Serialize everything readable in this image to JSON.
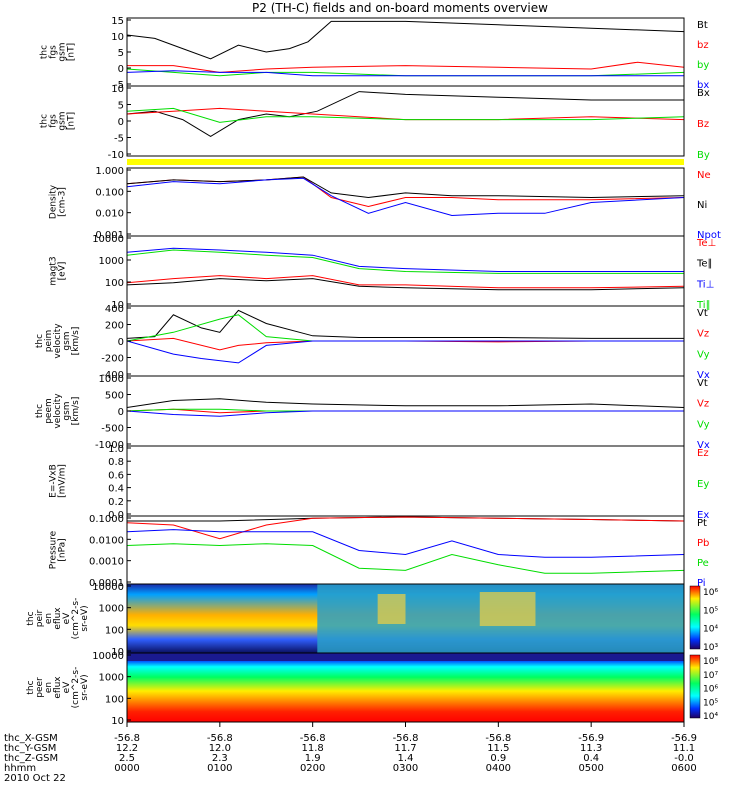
{
  "title": "P2 (TH-C) fields and on-board moments overview",
  "colors": {
    "black": "#000000",
    "red": "#ff0000",
    "green": "#00dd00",
    "blue": "#0000ff",
    "yellow": "#ffff00"
  },
  "time_axis": {
    "ticks": [
      "0000",
      "0100",
      "0200",
      "0300",
      "0400",
      "0500",
      "0600"
    ],
    "rows": [
      {
        "label": "thc_X-GSM",
        "values": [
          "-56.8",
          "-56.8",
          "-56.8",
          "-56.8",
          "-56.8",
          "-56.9",
          "-56.9"
        ]
      },
      {
        "label": "thc_Y-GSM",
        "values": [
          "12.2",
          "12.0",
          "11.8",
          "11.7",
          "11.5",
          "11.3",
          "11.1"
        ]
      },
      {
        "label": "thc_Z-GSM",
        "values": [
          "2.5",
          "2.3",
          "1.9",
          "1.4",
          "0.9",
          "0.4",
          "-0.0"
        ]
      },
      {
        "label": "hhmm",
        "values": [
          "0000",
          "0100",
          "0200",
          "0300",
          "0400",
          "0500",
          "0600"
        ]
      }
    ],
    "date": "2010 Oct 22"
  },
  "chart_data": [
    {
      "type": "line",
      "ylabel": [
        "thc",
        "fgs",
        "gsm",
        "[nT]"
      ],
      "ylim": [
        -5,
        15
      ],
      "yticks": [
        "15",
        "10",
        "5",
        "0",
        "-5"
      ],
      "legend": [
        {
          "name": "Bt",
          "color": "#000000"
        },
        {
          "name": "bz",
          "color": "#ff0000"
        },
        {
          "name": "by",
          "color": "#00dd00"
        },
        {
          "name": "bx",
          "color": "#0000ff"
        }
      ],
      "series": [
        {
          "name": "Bt",
          "hours": [
            0,
            0.3,
            0.6,
            0.9,
            1.2,
            1.5,
            1.75,
            1.95,
            2.2,
            3,
            4,
            5,
            6
          ],
          "values": [
            10,
            9,
            6,
            3,
            7,
            5,
            6,
            8,
            14,
            14,
            13,
            12,
            11
          ]
        },
        {
          "name": "bz",
          "hours": [
            0,
            0.5,
            1,
            1.5,
            2,
            3,
            4,
            5,
            5.5,
            6
          ],
          "values": [
            1,
            1,
            -1,
            0,
            0.5,
            1,
            0.5,
            0,
            2,
            0.5
          ]
        },
        {
          "name": "by",
          "hours": [
            0,
            0.5,
            1,
            1.5,
            2,
            3,
            4,
            5,
            6
          ],
          "values": [
            0,
            -1,
            -2,
            -1,
            -1,
            -2,
            -2,
            -2,
            -1
          ]
        },
        {
          "name": "bx",
          "hours": [
            0,
            0.5,
            1,
            1.5,
            2,
            3,
            4,
            5,
            6
          ],
          "values": [
            -1,
            -0.5,
            -1,
            -1,
            -2,
            -2,
            -2,
            -2,
            -2
          ]
        }
      ]
    },
    {
      "type": "line",
      "ylabel": [
        "thc",
        "fgs",
        "gsm",
        "[nT]"
      ],
      "ylim": [
        -15,
        10
      ],
      "yticks": [
        "10",
        "5",
        "0",
        "-5",
        "-10"
      ],
      "legend": [
        {
          "name": "Bx",
          "color": "#000000"
        },
        {
          "name": "Bz",
          "color": "#ff0000"
        },
        {
          "name": "By",
          "color": "#00dd00"
        }
      ],
      "series": [
        {
          "name": "Bx",
          "hours": [
            0,
            0.3,
            0.6,
            0.9,
            1.2,
            1.5,
            1.75,
            2.05,
            2.5,
            3,
            4,
            5,
            6
          ],
          "values": [
            0,
            1,
            -2,
            -8,
            -2,
            0,
            -1,
            1,
            8,
            7,
            6,
            5,
            5
          ]
        },
        {
          "name": "Bz",
          "hours": [
            0,
            0.5,
            1,
            1.5,
            2,
            3,
            4,
            5,
            6
          ],
          "values": [
            0,
            1,
            2,
            1,
            0,
            -2,
            -2,
            -1,
            -2
          ]
        },
        {
          "name": "By",
          "hours": [
            0,
            0.5,
            1,
            1.5,
            2,
            3,
            4,
            5,
            6
          ],
          "values": [
            1,
            2,
            -3,
            -1,
            -1,
            -2,
            -2,
            -2,
            -1
          ]
        }
      ]
    },
    {
      "type": "line",
      "scale": "log",
      "ylabel": [
        "Density",
        "[cm-3]"
      ],
      "ylim": [
        0.001,
        1.0
      ],
      "yticks": [
        "1.000",
        "0.100",
        "0.010",
        "0.001"
      ],
      "legend": [
        {
          "name": "Ne",
          "color": "#ff0000"
        },
        {
          "name": "Ni",
          "color": "#000000"
        },
        {
          "name": "Npot",
          "color": "#0000ff"
        }
      ],
      "series": [
        {
          "name": "Ne",
          "hours": [
            0,
            0.5,
            1,
            1.5,
            1.9,
            2.2,
            2.6,
            3,
            3.5,
            4,
            5,
            6
          ],
          "values": [
            0.2,
            0.3,
            0.25,
            0.3,
            0.4,
            0.05,
            0.02,
            0.05,
            0.05,
            0.04,
            0.04,
            0.05
          ]
        },
        {
          "name": "Ni",
          "hours": [
            0,
            0.5,
            1,
            1.5,
            1.9,
            2.2,
            2.6,
            3,
            3.5,
            4,
            5,
            6
          ],
          "values": [
            0.2,
            0.3,
            0.25,
            0.3,
            0.4,
            0.08,
            0.05,
            0.08,
            0.06,
            0.06,
            0.05,
            0.06
          ]
        },
        {
          "name": "Npot",
          "hours": [
            0,
            0.5,
            1,
            1.5,
            1.9,
            2.2,
            2.6,
            3,
            3.5,
            4,
            4.5,
            5,
            6
          ],
          "values": [
            0.15,
            0.25,
            0.2,
            0.3,
            0.35,
            0.06,
            0.01,
            0.03,
            0.008,
            0.01,
            0.01,
            0.03,
            0.05
          ]
        }
      ]
    },
    {
      "type": "line",
      "scale": "log",
      "ylabel": [
        "magt3",
        "[eV]"
      ],
      "ylim": [
        10,
        10000
      ],
      "yticks": [
        "10000",
        "1000",
        "100",
        "10"
      ],
      "legend": [
        {
          "name": "Te⊥",
          "color": "#ff0000"
        },
        {
          "name": "Te∥",
          "color": "#000000"
        },
        {
          "name": "Ti⊥",
          "color": "#0000ff"
        },
        {
          "name": "Ti∥",
          "color": "#00dd00"
        }
      ],
      "series": [
        {
          "name": "Te⊥",
          "hours": [
            0,
            0.5,
            1,
            1.5,
            2,
            2.5,
            3,
            4,
            5,
            6
          ],
          "values": [
            100,
            150,
            200,
            150,
            200,
            80,
            80,
            60,
            60,
            70
          ]
        },
        {
          "name": "Te∥",
          "hours": [
            0,
            0.5,
            1,
            1.5,
            2,
            2.5,
            3,
            4,
            5,
            6
          ],
          "values": [
            80,
            100,
            150,
            120,
            150,
            70,
            60,
            50,
            50,
            60
          ]
        },
        {
          "name": "Ti⊥",
          "hours": [
            0,
            0.5,
            1,
            1.5,
            2,
            2.5,
            3,
            4,
            5,
            6
          ],
          "values": [
            2000,
            3000,
            2500,
            2000,
            1500,
            500,
            400,
            300,
            300,
            300
          ]
        },
        {
          "name": "Ti∥",
          "hours": [
            0,
            0.5,
            1,
            1.5,
            2,
            2.5,
            3,
            4,
            5,
            6
          ],
          "values": [
            1500,
            2500,
            2000,
            1500,
            1200,
            400,
            300,
            250,
            250,
            250
          ]
        }
      ]
    },
    {
      "type": "line",
      "ylabel": [
        "thc",
        "peim",
        "velocity",
        "gsm",
        "[km/s]"
      ],
      "ylim": [
        -400,
        400
      ],
      "yticks": [
        "400",
        "200",
        "0",
        "-200",
        "-400"
      ],
      "legend": [
        {
          "name": "Vt",
          "color": "#000000"
        },
        {
          "name": "Vz",
          "color": "#ff0000"
        },
        {
          "name": "Vy",
          "color": "#00dd00"
        },
        {
          "name": "Vx",
          "color": "#0000ff"
        }
      ],
      "series": [
        {
          "name": "Vt",
          "hours": [
            0,
            0.3,
            0.5,
            0.8,
            1,
            1.2,
            1.5,
            2,
            2.5,
            3,
            4,
            5,
            6
          ],
          "values": [
            30,
            50,
            300,
            150,
            100,
            350,
            200,
            60,
            40,
            40,
            40,
            30,
            30
          ]
        },
        {
          "name": "Vz",
          "hours": [
            0,
            0.5,
            1,
            1.2,
            1.5,
            2,
            3,
            4,
            5,
            6
          ],
          "values": [
            0,
            30,
            -100,
            -50,
            -20,
            0,
            0,
            -10,
            0,
            0
          ]
        },
        {
          "name": "Vy",
          "hours": [
            0,
            0.5,
            1,
            1.2,
            1.5,
            2,
            3,
            4,
            5,
            6
          ],
          "values": [
            0,
            100,
            250,
            300,
            50,
            0,
            0,
            0,
            0,
            0
          ]
        },
        {
          "name": "Vx",
          "hours": [
            0,
            0.5,
            0.8,
            1.2,
            1.5,
            2,
            3,
            4,
            5,
            6
          ],
          "values": [
            0,
            -150,
            -200,
            -250,
            -50,
            0,
            0,
            0,
            0,
            0
          ]
        }
      ]
    },
    {
      "type": "line",
      "ylabel": [
        "thc",
        "peem",
        "velocity",
        "gsm",
        "[km/s]"
      ],
      "ylim": [
        -1000,
        1000
      ],
      "yticks": [
        "1000",
        "500",
        "0",
        "-500",
        "-1000"
      ],
      "legend": [
        {
          "name": "Vt",
          "color": "#000000"
        },
        {
          "name": "Vz",
          "color": "#ff0000"
        },
        {
          "name": "Vy",
          "color": "#00dd00"
        },
        {
          "name": "Vx",
          "color": "#0000ff"
        }
      ],
      "series": [
        {
          "name": "Vt",
          "hours": [
            0,
            0.5,
            1,
            1.5,
            2,
            3,
            4,
            5,
            6
          ],
          "values": [
            100,
            300,
            350,
            250,
            200,
            150,
            150,
            200,
            100
          ]
        },
        {
          "name": "Vz",
          "hours": [
            0,
            0.5,
            1,
            1.5,
            2,
            3,
            4,
            5,
            6
          ],
          "values": [
            0,
            50,
            -50,
            0,
            0,
            0,
            0,
            0,
            0
          ]
        },
        {
          "name": "Vy",
          "hours": [
            0,
            0.5,
            1,
            1.5,
            2,
            3,
            4,
            5,
            6
          ],
          "values": [
            0,
            50,
            50,
            0,
            0,
            0,
            0,
            0,
            0
          ]
        },
        {
          "name": "Vx",
          "hours": [
            0,
            0.5,
            1,
            1.5,
            2,
            3,
            4,
            5,
            6
          ],
          "values": [
            0,
            -100,
            -150,
            -50,
            0,
            0,
            0,
            0,
            0
          ]
        }
      ]
    },
    {
      "type": "line",
      "ylabel": [
        "E=-VxB",
        "[mV/m]"
      ],
      "ylim": [
        0,
        1
      ],
      "yticks": [
        "1.0",
        "0.8",
        "0.6",
        "0.4",
        "0.2",
        "0.0"
      ],
      "legend": [
        {
          "name": "Ez",
          "color": "#ff0000"
        },
        {
          "name": "Ey",
          "color": "#00dd00"
        },
        {
          "name": "Ex",
          "color": "#0000ff"
        }
      ],
      "series": []
    },
    {
      "type": "line",
      "scale": "log",
      "ylabel": [
        "Pressure",
        "[nPa]"
      ],
      "ylim": [
        0.0001,
        0.1
      ],
      "yticks": [
        "0.1000",
        "0.0100",
        "0.0010",
        "0.0001"
      ],
      "legend": [
        {
          "name": "Pt",
          "color": "#000000"
        },
        {
          "name": "Pb",
          "color": "#ff0000"
        },
        {
          "name": "Pe",
          "color": "#00dd00"
        },
        {
          "name": "Pi",
          "color": "#0000ff"
        }
      ],
      "series": [
        {
          "name": "Pt",
          "hours": [
            0,
            1,
            2,
            3,
            4,
            5,
            6
          ],
          "values": [
            0.06,
            0.06,
            0.08,
            0.09,
            0.08,
            0.07,
            0.06
          ]
        },
        {
          "name": "Pb",
          "hours": [
            0,
            0.5,
            1,
            1.5,
            2,
            3,
            4,
            5,
            6
          ],
          "values": [
            0.05,
            0.04,
            0.01,
            0.04,
            0.08,
            0.09,
            0.08,
            0.07,
            0.06
          ]
        },
        {
          "name": "Pe",
          "hours": [
            0,
            0.5,
            1,
            1.5,
            2,
            2.5,
            3,
            3.5,
            4,
            4.5,
            5,
            6
          ],
          "values": [
            0.005,
            0.006,
            0.005,
            0.006,
            0.005,
            0.0005,
            0.0004,
            0.002,
            0.0007,
            0.0003,
            0.0003,
            0.0004
          ]
        },
        {
          "name": "Pi",
          "hours": [
            0,
            0.5,
            1,
            1.5,
            2,
            2.5,
            3,
            3.5,
            4,
            4.5,
            5,
            6
          ],
          "values": [
            0.02,
            0.025,
            0.02,
            0.02,
            0.02,
            0.003,
            0.002,
            0.008,
            0.002,
            0.0015,
            0.0015,
            0.002
          ]
        }
      ]
    },
    {
      "type": "heatmap",
      "ylabel": [
        "thc",
        "peir",
        "en",
        "eflux",
        "eV",
        "(cm^2-s-",
        "sr-eV)"
      ],
      "yticks": [
        "10000",
        "1000",
        "100",
        "10"
      ],
      "colorbar": [
        "10⁶",
        "10⁵",
        "10⁴",
        "10³"
      ]
    },
    {
      "type": "heatmap",
      "ylabel": [
        "thc",
        "peer",
        "en",
        "eflux",
        "eV",
        "(cm^2-s-",
        "sr-eV)"
      ],
      "yticks": [
        "10000",
        "1000",
        "100",
        "10"
      ],
      "colorbar": [
        "10⁸",
        "10⁷",
        "10⁶",
        "10⁵",
        "10⁴"
      ]
    }
  ]
}
